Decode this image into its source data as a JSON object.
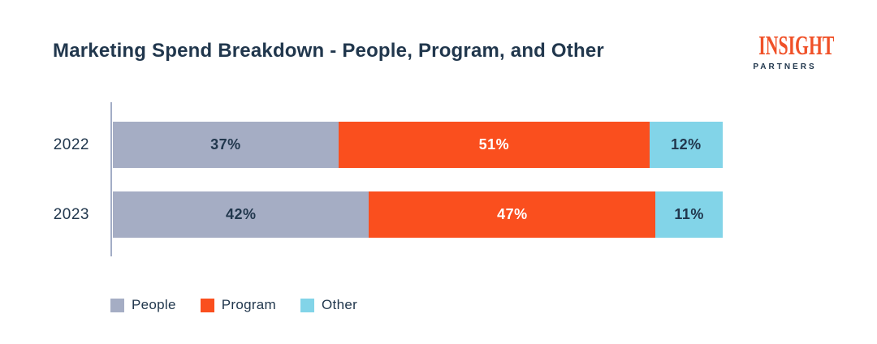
{
  "title": "Marketing Spend Breakdown - People, Program, and Other",
  "logo": {
    "line1": "INSIGHT",
    "line2": "PARTNERS",
    "wordmark_color": "#F05128",
    "subtext_color": "#21374D"
  },
  "colors": {
    "text": "#21374D",
    "axis_line": "#A3ADC6",
    "background": "#FFFFFF"
  },
  "chart_data": {
    "type": "bar",
    "orientation": "horizontal",
    "stacked": true,
    "unit": "%",
    "title": "Marketing Spend Breakdown - People, Program, and Other",
    "categories": [
      "2022",
      "2023"
    ],
    "series": [
      {
        "name": "People",
        "color": "#A5ADC4",
        "label_color": "#21374D",
        "values": [
          37,
          42
        ]
      },
      {
        "name": "Program",
        "color": "#FA4F1E",
        "label_color": "#FFFFFF",
        "values": [
          51,
          47
        ]
      },
      {
        "name": "Other",
        "color": "#82D4E8",
        "label_color": "#21374D",
        "values": [
          12,
          11
        ]
      }
    ],
    "value_labels": [
      [
        "37%",
        "51%",
        "12%"
      ],
      [
        "42%",
        "47%",
        "11%"
      ]
    ],
    "xlim": [
      0,
      100
    ],
    "grid": false,
    "legend_position": "bottom",
    "legend": [
      "People",
      "Program",
      "Other"
    ]
  }
}
